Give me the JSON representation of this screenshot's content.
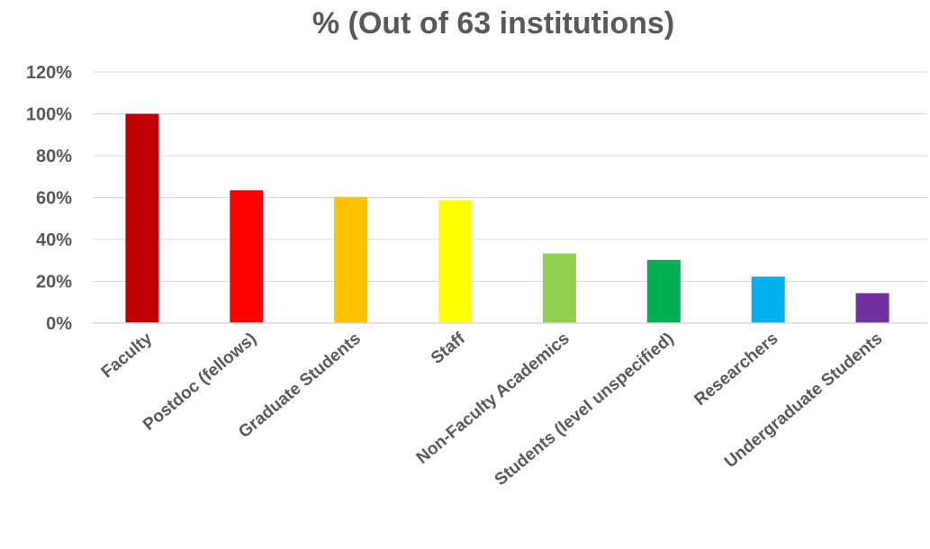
{
  "chart_data": {
    "type": "bar",
    "title": "% (Out of 63 institutions)",
    "xlabel": "",
    "ylabel": "",
    "ylim": [
      0,
      120
    ],
    "y_ticks": [
      "0%",
      "20%",
      "40%",
      "60%",
      "80%",
      "100%",
      "120%"
    ],
    "y_tick_values": [
      0,
      20,
      40,
      60,
      80,
      100,
      120
    ],
    "grid": true,
    "legend": "none",
    "categories": [
      "Faculty",
      "Postdoc (fellows)",
      "Graduate Students",
      "Staff",
      "Non-Faculty Academics",
      "Students (level unspecified)",
      "Researchers",
      "Undergraduate Students"
    ],
    "values": [
      100,
      63.5,
      60.3,
      58.7,
      33.3,
      30.2,
      22.2,
      14.3
    ],
    "colors": [
      "#c00000",
      "#ff0000",
      "#ffc000",
      "#ffff00",
      "#92d050",
      "#00b050",
      "#00b0f0",
      "#7030a0"
    ]
  }
}
